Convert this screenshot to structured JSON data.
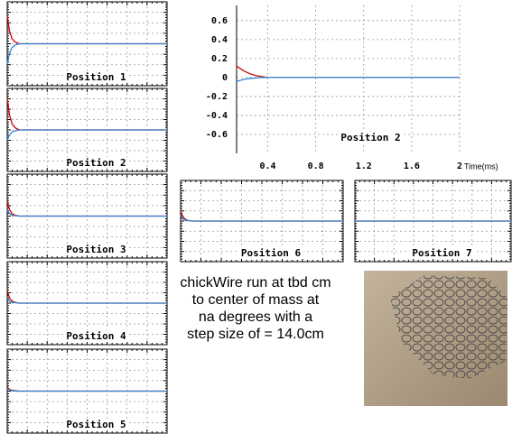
{
  "chart_data": [
    {
      "type": "line",
      "title": "Position 1",
      "xlim": [
        0,
        2
      ],
      "ylim": [
        -1,
        1
      ],
      "x": [
        0,
        0.03,
        0.06,
        0.1,
        0.15,
        2
      ],
      "series": [
        {
          "color": "#cc0000",
          "values": [
            0.65,
            0.3,
            0.12,
            0.04,
            0,
            0
          ]
        },
        {
          "color": "#2f86d6",
          "values": [
            -0.47,
            -0.22,
            -0.09,
            -0.03,
            0,
            0
          ]
        }
      ]
    },
    {
      "type": "line",
      "title": "Position 2",
      "xlim": [
        0,
        2
      ],
      "ylim": [
        -1,
        1
      ],
      "x": [
        0,
        0.03,
        0.06,
        0.1,
        0.15,
        2
      ],
      "series": [
        {
          "color": "#cc0000",
          "values": [
            0.74,
            0.35,
            0.15,
            0.05,
            0,
            0
          ]
        },
        {
          "color": "#2f86d6",
          "values": [
            -0.24,
            -0.12,
            -0.05,
            -0.02,
            0,
            0
          ]
        }
      ]
    },
    {
      "type": "line",
      "title": "Position 3",
      "xlim": [
        0,
        2
      ],
      "ylim": [
        -1,
        1
      ],
      "x": [
        0,
        0.03,
        0.06,
        0.1,
        0.15,
        2
      ],
      "series": [
        {
          "color": "#cc0000",
          "values": [
            0.35,
            0.15,
            0.06,
            0.02,
            0,
            0
          ]
        },
        {
          "color": "#2f86d6",
          "values": [
            0.15,
            0.06,
            0.02,
            0.01,
            0,
            0
          ]
        }
      ]
    },
    {
      "type": "line",
      "title": "Position 4",
      "xlim": [
        0,
        2
      ],
      "ylim": [
        -1,
        1
      ],
      "x": [
        0,
        0.03,
        0.06,
        0.1,
        0.15,
        2
      ],
      "series": [
        {
          "color": "#cc0000",
          "values": [
            0.3,
            0.12,
            0.05,
            0.02,
            0,
            0
          ]
        },
        {
          "color": "#2f86d6",
          "values": [
            0.12,
            0.05,
            0.02,
            0.01,
            0,
            0
          ]
        }
      ]
    },
    {
      "type": "line",
      "title": "Position 5",
      "xlim": [
        0,
        2
      ],
      "ylim": [
        -1,
        1
      ],
      "x": [
        0,
        0.03,
        0.06,
        0.1,
        0.15,
        2
      ],
      "series": [
        {
          "color": "#cc0000",
          "values": [
            0.1,
            0.04,
            0.02,
            0.01,
            0,
            0
          ]
        },
        {
          "color": "#2f86d6",
          "values": [
            0.06,
            0.03,
            0.01,
            0,
            0,
            0
          ]
        }
      ]
    },
    {
      "type": "line",
      "title": "Position 2",
      "xlabel": "Time(ms)",
      "xlim": [
        0.14,
        2
      ],
      "ylim": [
        -0.8,
        0.76
      ],
      "xticks": [
        0.4,
        0.8,
        1.2,
        1.6,
        2
      ],
      "yticks": [
        0.6,
        0.4,
        0.2,
        0,
        -0.2,
        -0.4,
        -0.6
      ],
      "grid": true,
      "x": [
        0.14,
        0.2,
        0.25,
        0.3,
        0.35,
        0.4,
        2
      ],
      "series": [
        {
          "color": "#cc0000",
          "values": [
            0.12,
            0.07,
            0.04,
            0.02,
            0.01,
            0,
            0
          ]
        },
        {
          "color": "#2f86d6",
          "values": [
            -0.04,
            -0.02,
            -0.01,
            -0.005,
            0,
            0,
            0
          ]
        }
      ]
    },
    {
      "type": "line",
      "title": "Position 6",
      "xlim": [
        0,
        2
      ],
      "ylim": [
        -1,
        1
      ],
      "x": [
        0,
        0.03,
        0.06,
        0.1,
        0.15,
        2
      ],
      "series": [
        {
          "color": "#cc0000",
          "values": [
            0.25,
            0.1,
            0.04,
            0.01,
            0,
            0
          ]
        },
        {
          "color": "#2f86d6",
          "values": [
            0.12,
            0.05,
            0.02,
            0.01,
            0,
            0
          ]
        }
      ]
    },
    {
      "type": "line",
      "title": "Position 7",
      "xlim": [
        0,
        2
      ],
      "ylim": [
        -1,
        1
      ],
      "x": [
        0,
        0.03,
        0.06,
        0.1,
        0.15,
        2
      ],
      "series": [
        {
          "color": "#cc0000",
          "values": [
            0,
            0,
            0,
            0,
            0,
            0
          ]
        },
        {
          "color": "#2f86d6",
          "values": [
            0,
            0,
            0,
            0,
            0,
            0
          ]
        }
      ]
    }
  ],
  "caption": [
    "chickWire run at tbd cm",
    "to center of mass at",
    "na degrees with a",
    "step size of = 14.0cm"
  ]
}
